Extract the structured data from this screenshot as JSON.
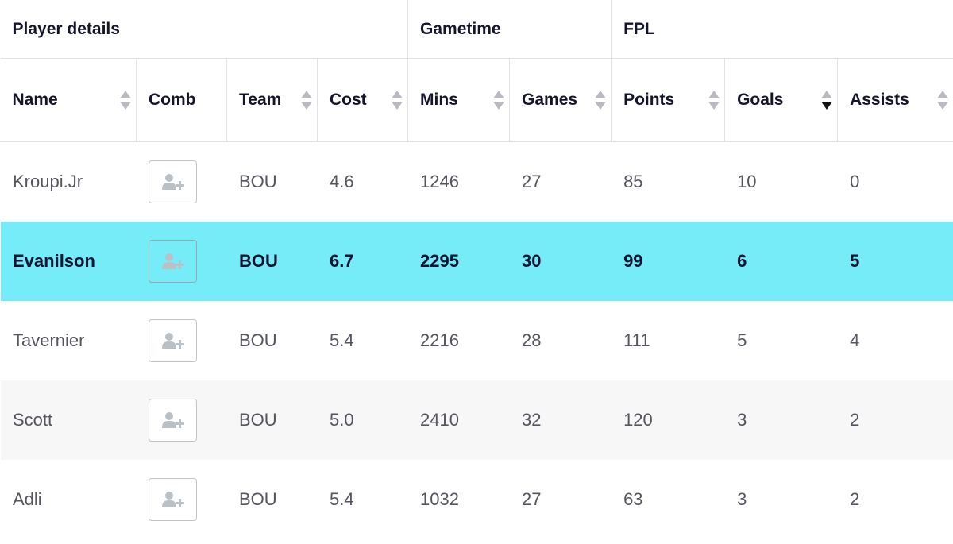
{
  "groups": [
    {
      "label": "Player details"
    },
    {
      "label": "Gametime"
    },
    {
      "label": "FPL"
    }
  ],
  "columns": [
    {
      "label": "Name",
      "sortable": true
    },
    {
      "label": "Comb",
      "sortable": false
    },
    {
      "label": "Team",
      "sortable": true
    },
    {
      "label": "Cost",
      "sortable": true
    },
    {
      "label": "Mins",
      "sortable": true
    },
    {
      "label": "Games",
      "sortable": true
    },
    {
      "label": "Points",
      "sortable": true
    },
    {
      "label": "Goals",
      "sortable": true,
      "sorted": "desc"
    },
    {
      "label": "Assists",
      "sortable": true
    }
  ],
  "comb_icon": "add-user-icon",
  "colors": {
    "highlight": "#75ecf8",
    "alt_row": "#f7f7f7"
  },
  "rows": [
    {
      "name": "Kroupi.Jr",
      "team": "BOU",
      "cost": "4.6",
      "mins": "1246",
      "games": "27",
      "points": "85",
      "goals": "10",
      "assists": "0"
    },
    {
      "name": "Evanilson",
      "team": "BOU",
      "cost": "6.7",
      "mins": "2295",
      "games": "30",
      "points": "99",
      "goals": "6",
      "assists": "5",
      "highlighted": true
    },
    {
      "name": "Tavernier",
      "team": "BOU",
      "cost": "5.4",
      "mins": "2216",
      "games": "28",
      "points": "111",
      "goals": "5",
      "assists": "4"
    },
    {
      "name": "Scott",
      "team": "BOU",
      "cost": "5.0",
      "mins": "2410",
      "games": "32",
      "points": "120",
      "goals": "3",
      "assists": "2"
    },
    {
      "name": "Adli",
      "team": "BOU",
      "cost": "5.4",
      "mins": "1032",
      "games": "27",
      "points": "63",
      "goals": "3",
      "assists": "2"
    }
  ]
}
